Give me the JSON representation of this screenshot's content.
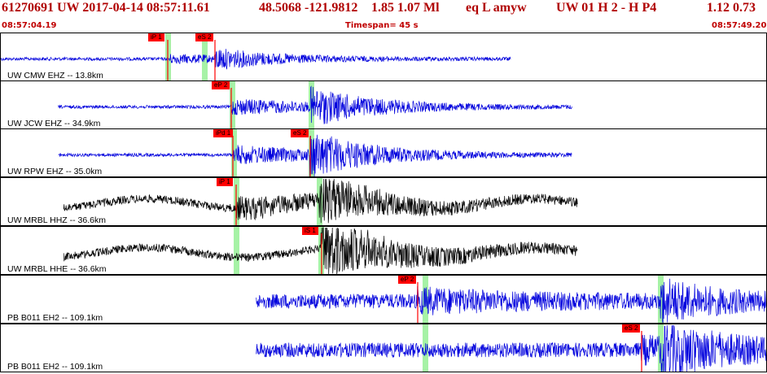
{
  "header": {
    "event_id": "61270691 UW 2017-04-14 08:57:11.61",
    "location": "48.5068 -121.9812",
    "magnitude": "1.85  1.07 Ml",
    "event_type": "eq  L amyw",
    "solution": "UW 01  H  2  -  H P4",
    "values": "1.12  0.73"
  },
  "timebar": {
    "start_time": "08:57:04.19",
    "timespan": "Timespan=  45 s",
    "end_time": "08:57:49.20"
  },
  "colors": {
    "header_text": "#b00000",
    "trace_short_period": "#0000dd",
    "trace_broadband": "#000000",
    "pick_marker": "#ff0000",
    "window_highlight": "#a6f2a6"
  },
  "panels": [
    {
      "label": "UW CMW EHZ -- 13.8km",
      "trace_color": "blue",
      "picks": [
        {
          "label": "iP 1",
          "t": 0.218
        },
        {
          "label": "eS 2",
          "t": 0.279
        }
      ],
      "windows": [
        0.218,
        0.265
      ]
    },
    {
      "label": "UW JCW EHZ -- 34.9km",
      "trace_color": "blue",
      "picks": [
        {
          "label": "eP 2",
          "t": 0.3
        }
      ],
      "windows": [
        0.302,
        0.404
      ]
    },
    {
      "label": "UW RPW EHZ -- 35.0km",
      "trace_color": "blue",
      "picks": [
        {
          "label": "iPd 1",
          "t": 0.303
        },
        {
          "label": "eS 2",
          "t": 0.403
        }
      ],
      "windows": [
        0.304,
        0.404
      ]
    },
    {
      "label": "UW MRBL HHZ -- 36.6km",
      "trace_color": "black",
      "picks": [
        {
          "label": "iP 1",
          "t": 0.307
        }
      ],
      "windows": [
        0.307,
        0.415
      ]
    },
    {
      "label": "UW MRBL HHE -- 36.6km",
      "trace_color": "black",
      "picks": [
        {
          "label": "iS 1",
          "t": 0.418
        }
      ],
      "windows": [
        0.307,
        0.417
      ]
    },
    {
      "label": "PB B011 EH2 -- 109.1km",
      "trace_color": "blue",
      "picks": [
        {
          "label": "eP 2",
          "t": 0.543
        }
      ],
      "windows": [
        0.553,
        0.86
      ]
    },
    {
      "label": "PB B011 EH2 -- 109.1km",
      "trace_color": "blue",
      "picks": [
        {
          "label": "eS 2",
          "t": 0.835
        }
      ],
      "windows": [
        0.553,
        0.86
      ]
    }
  ]
}
